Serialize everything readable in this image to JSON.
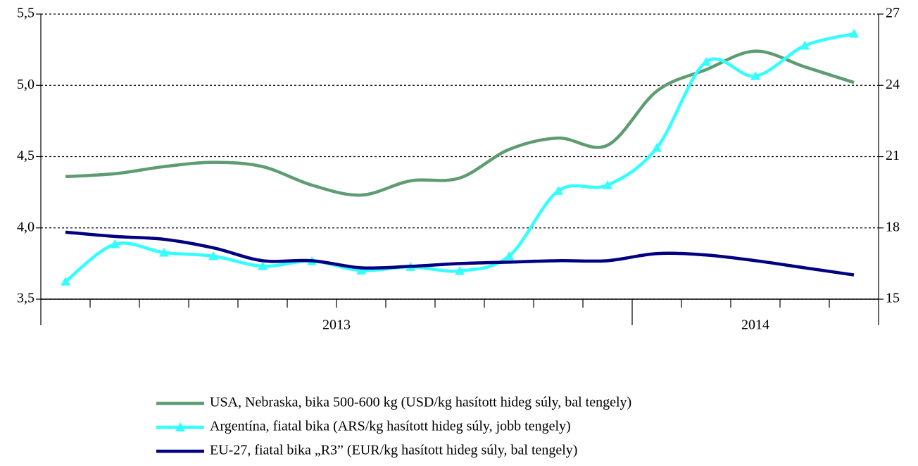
{
  "chart_data": {
    "type": "line",
    "categories": [
      null,
      null,
      null,
      null,
      null,
      null,
      null,
      null,
      null,
      null,
      null,
      null,
      null,
      null,
      null,
      null,
      null
    ],
    "year_groups": [
      {
        "label": "2013",
        "months": 12
      },
      {
        "label": "2014",
        "months": 5
      }
    ],
    "ylim": [
      3.5,
      5.5
    ],
    "yticks": [
      {
        "value": 3.5,
        "label": "3,5"
      },
      {
        "value": 4.0,
        "label": "4,0"
      },
      {
        "value": 4.5,
        "label": "4,5"
      },
      {
        "value": 5.0,
        "label": "5,0"
      },
      {
        "value": 5.5,
        "label": "5,5"
      }
    ],
    "y2lim": [
      15,
      27
    ],
    "y2ticks": [
      15,
      18,
      21,
      24,
      27
    ],
    "grid": true,
    "smooth": true,
    "legend": "bottom",
    "series": [
      {
        "name": "USA, Nebraska, bika 500-600 kg (USD/kg hasított hideg súly, bal tengely)",
        "color": "#5f9c72",
        "axis": "y",
        "values": [
          4.36,
          4.38,
          4.43,
          4.46,
          4.43,
          4.3,
          4.23,
          4.33,
          4.35,
          4.55,
          4.63,
          4.58,
          4.96,
          5.11,
          5.24,
          5.13,
          5.02
        ]
      },
      {
        "name": "Argentína, fiatal bika (ARS/kg hasított hideg súly, jobb tengely)",
        "color": "#33ffff",
        "axis": "y2",
        "marker": "triangle",
        "values": [
          15.74,
          17.31,
          16.96,
          16.81,
          16.39,
          16.6,
          16.21,
          16.36,
          16.19,
          16.81,
          19.56,
          19.8,
          21.37,
          24.99,
          24.39,
          25.67,
          26.17
        ]
      },
      {
        "name": "EU-27, fiatal bika „R3” (EUR/kg hasított hideg súly, bal tengely)",
        "color": "#000080",
        "axis": "y",
        "values": [
          3.97,
          3.94,
          3.92,
          3.86,
          3.77,
          3.77,
          3.72,
          3.73,
          3.75,
          3.76,
          3.77,
          3.77,
          3.82,
          3.81,
          3.77,
          3.72,
          3.67
        ]
      }
    ]
  }
}
